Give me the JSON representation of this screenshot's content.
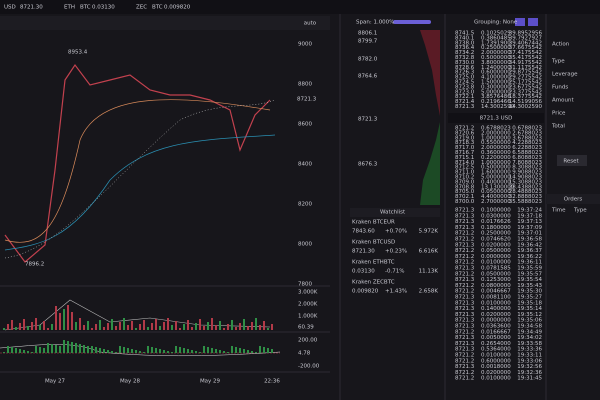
{
  "top_bar": {
    "pairs": [
      {
        "base": "USD",
        "price": "8721.30"
      },
      {
        "base": "ETH",
        "quote": "BTC",
        "price": "0.03130"
      },
      {
        "base": "ZEC",
        "quote": "BTC",
        "price": "0.009820"
      }
    ]
  },
  "toolbar": {
    "scale_mode": "auto"
  },
  "price_chart": {
    "price_axis": [
      "9000",
      "8800",
      "8600",
      "8400",
      "8200",
      "8000",
      "7800"
    ],
    "high_label": "8953.4",
    "low_label": "7896.2",
    "last_label": "8721.3",
    "volume_axis": [
      "3.000K",
      "2.000K",
      "1.000K",
      "60.39"
    ],
    "macd_axis": [
      "200.00",
      "4.78",
      "-200.00"
    ],
    "time_axis": [
      "May 27",
      "May 28",
      "May 29",
      "22:36"
    ]
  },
  "depth": {
    "span_label": "Span: 1.000%",
    "price_labels": [
      "8806.1",
      "8799.7",
      "8782.0",
      "8764.6",
      "8721.3",
      "8676.3"
    ]
  },
  "watchlist": {
    "title": "Watchlist",
    "rows": [
      [
        "Kraken BTCEUR",
        "7843.60",
        "+0.70%",
        "5.972K"
      ],
      [
        "Kraken BTCUSD",
        "8721.30",
        "+0.23%",
        "6.616K"
      ],
      [
        "Kraken ETHBTC",
        "0.03130",
        "-0.71%",
        "11.13K"
      ],
      [
        "Kraken ZECBTC",
        "0.009820",
        "+1.43%",
        "2.658K"
      ]
    ]
  },
  "order_book": {
    "grouping": "Grouping: None",
    "mid_price": "8721.3 USD",
    "asks": [
      [
        "8741.5",
        "0.1025029",
        "39.8952956"
      ],
      [
        "8740.1",
        "0.3860485",
        "39.7927927"
      ],
      [
        "8738.0",
        "1.7391900",
        "39.4067442"
      ],
      [
        "8736.4",
        "0.2500000",
        "37.6675542"
      ],
      [
        "8734.2",
        "2.0000000",
        "37.4175542"
      ],
      [
        "8732.8",
        "0.5000000",
        "35.4175542"
      ],
      [
        "8730.0",
        "3.8000000",
        "34.9175542"
      ],
      [
        "8728.6",
        "1.2400000",
        "31.1175542"
      ],
      [
        "8726.3",
        "0.6000000",
        "29.8775542"
      ],
      [
        "8725.0",
        "4.1000000",
        "29.2775542"
      ],
      [
        "8724.5",
        "1.5000000",
        "25.1775542"
      ],
      [
        "8723.8",
        "0.3000000",
        "23.6775542"
      ],
      [
        "8723.0",
        "5.0000000",
        "23.3775542"
      ],
      [
        "8722.1",
        "3.8576486",
        "18.3775542"
      ],
      [
        "8721.4",
        "0.2196466",
        "14.5199056"
      ],
      [
        "8721.3",
        "14.3002590",
        "14.3002590"
      ]
    ],
    "bids": [
      [
        "8721.2",
        "0.6788023",
        "0.6788023"
      ],
      [
        "8720.6",
        "2.0000000",
        "2.6788023"
      ],
      [
        "8719.0",
        "1.0000000",
        "3.6788023"
      ],
      [
        "8718.3",
        "0.5500000",
        "4.2288023"
      ],
      [
        "8717.0",
        "2.0000000",
        "6.2288023"
      ],
      [
        "8716.7",
        "0.3600000",
        "6.5888023"
      ],
      [
        "8715.1",
        "0.2200000",
        "6.8088023"
      ],
      [
        "8714.0",
        "1.0000000",
        "7.8088023"
      ],
      [
        "8712.5",
        "0.5000000",
        "8.3088023"
      ],
      [
        "8711.0",
        "1.6000000",
        "9.9088023"
      ],
      [
        "8710.2",
        "5.0000000",
        "14.9088023"
      ],
      [
        "8709.0",
        "0.4000000",
        "15.3088023"
      ],
      [
        "8708.8",
        "13.1300000",
        "28.4388023"
      ],
      [
        "8705.0",
        "0.0500000",
        "28.4888023"
      ],
      [
        "8702.1",
        "4.4000000",
        "32.8888023"
      ],
      [
        "8700.0",
        "2.7000000",
        "35.5888023"
      ]
    ],
    "trades": [
      [
        "8721.3",
        "0.1000000",
        "19:37:24"
      ],
      [
        "8721.3",
        "0.0300000",
        "19:37:18"
      ],
      [
        "8721.3",
        "0.0176626",
        "19:37:13"
      ],
      [
        "8721.3",
        "0.1800000",
        "19:37:09"
      ],
      [
        "8721.2",
        "0.2500000",
        "19:37:01"
      ],
      [
        "8721.2",
        "0.0746620",
        "19:36:58"
      ],
      [
        "8721.3",
        "0.0200000",
        "19:36:42"
      ],
      [
        "8721.2",
        "0.0500000",
        "19:36:37"
      ],
      [
        "8721.2",
        "0.0000000",
        "19:36:22"
      ],
      [
        "8721.2",
        "0.0100000",
        "19:36:11"
      ],
      [
        "8721.3",
        "0.0781585",
        "19:35:59"
      ],
      [
        "8721.2",
        "0.0500000",
        "19:35:57"
      ],
      [
        "8721.3",
        "0.1253000",
        "19:35:54"
      ],
      [
        "8721.2",
        "0.0800000",
        "19:35:43"
      ],
      [
        "8721.2",
        "0.0046667",
        "19:35:30"
      ],
      [
        "8721.3",
        "0.0081100",
        "19:35:27"
      ],
      [
        "8721.3",
        "0.0100000",
        "19:35:18"
      ],
      [
        "8721.3",
        "0.1400000",
        "19:35:14"
      ],
      [
        "8721.3",
        "0.0200000",
        "19:35:12"
      ],
      [
        "8721.3",
        "0.0000000",
        "19:35:06"
      ],
      [
        "8721.3",
        "0.0363600",
        "19:34:58"
      ],
      [
        "8721.2",
        "0.0166667",
        "19:34:49"
      ],
      [
        "8721.3",
        "0.0050000",
        "19:34:02"
      ],
      [
        "8721.3",
        "0.2654000",
        "19:33:58"
      ],
      [
        "8721.3",
        "0.5364000",
        "19:33:36"
      ],
      [
        "8721.2",
        "0.0100000",
        "19:33:11"
      ],
      [
        "8721.2",
        "0.6000000",
        "19:33:06"
      ],
      [
        "8721.3",
        "0.0018000",
        "19:32:56"
      ],
      [
        "8721.2",
        "0.0200000",
        "19:32:36"
      ],
      [
        "8721.2",
        "0.0100000",
        "19:31:45"
      ]
    ]
  },
  "order_form": {
    "labels": [
      "Action",
      "Type",
      "Leverage",
      "Funds",
      "Amount",
      "Price",
      "Total"
    ],
    "reset": "Reset",
    "orders_tab": "Orders",
    "columns": [
      "Time",
      "Type"
    ]
  }
}
